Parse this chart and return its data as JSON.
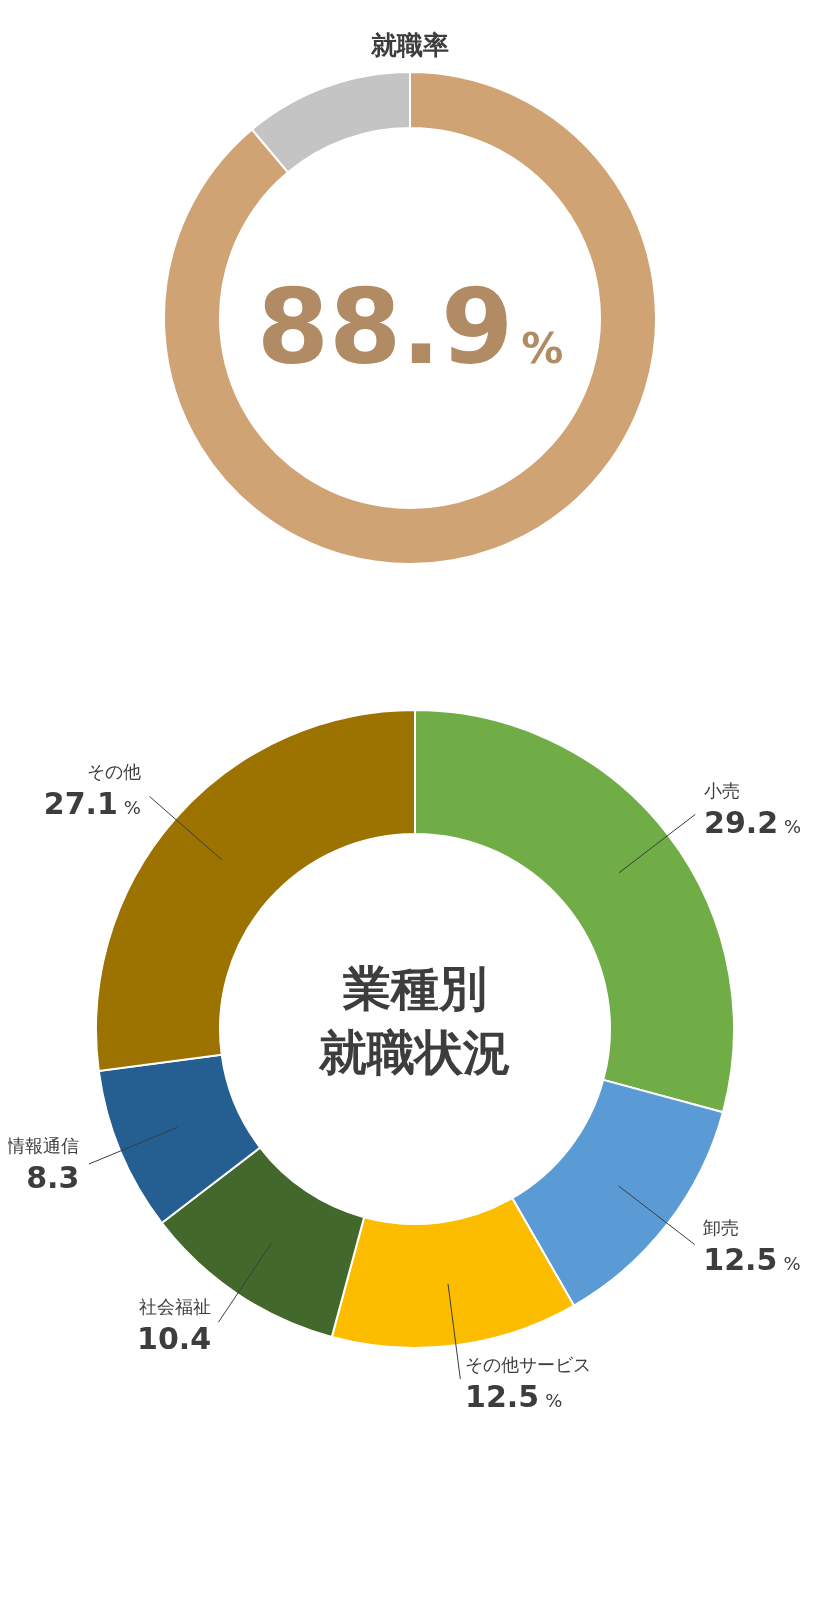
{
  "chart_data": [
    {
      "type": "donut",
      "title": "就職率",
      "categories": [
        null,
        null
      ],
      "values": [
        88.9,
        11.1
      ],
      "colors": [
        "#d0a374",
        "#c4c4c4"
      ],
      "value_labels": [
        "88.9%",
        null
      ]
    },
    {
      "type": "donut",
      "title": "業種別就職状況",
      "categories": [
        "小売",
        "卸売",
        "その他サービス",
        "社会福祉",
        "情報通信",
        "その他"
      ],
      "values": [
        29.2,
        12.5,
        12.5,
        10.4,
        8.3,
        27.1
      ],
      "colors": [
        "#70ad47",
        "#5b9bd5",
        "#fcbc00",
        "#43682b",
        "#255e91",
        "#9c7200"
      ],
      "value_labels": [
        "29.2%",
        "12.5%",
        "12.5%",
        "10.4",
        "8.3",
        "27.1%"
      ]
    }
  ]
}
